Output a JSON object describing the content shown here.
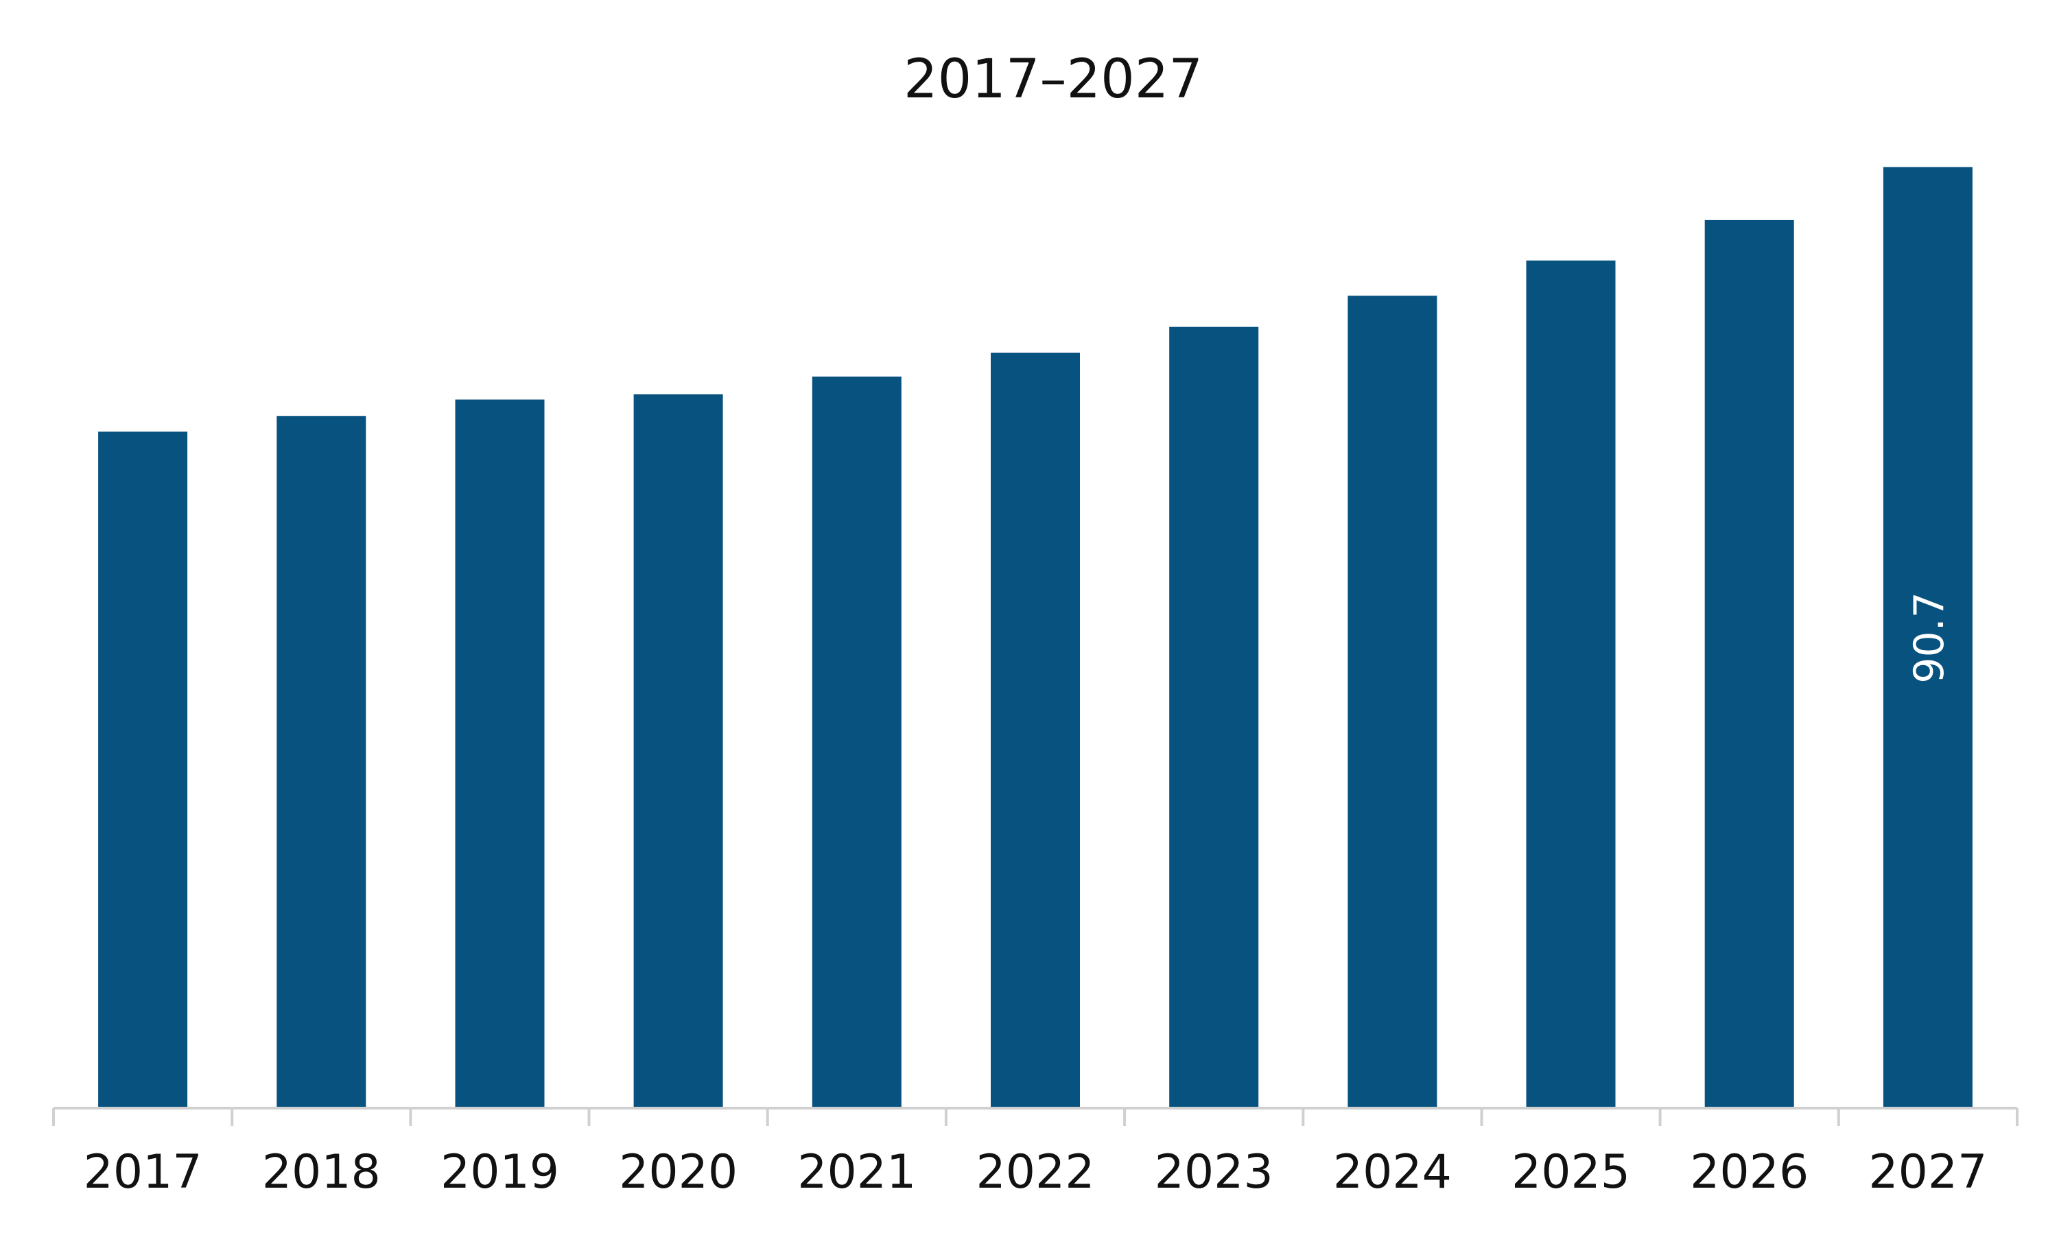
{
  "chart_data": {
    "type": "bar",
    "title": "2017–2027",
    "xlabel": "",
    "ylabel": "",
    "categories": [
      "2017",
      "2018",
      "2019",
      "2020",
      "2021",
      "2022",
      "2023",
      "2024",
      "2025",
      "2026",
      "2027"
    ],
    "series": [
      {
        "values": [
          65.2,
          66.7,
          68.3,
          68.8,
          70.5,
          72.8,
          75.3,
          78.3,
          81.7,
          85.6,
          90.7
        ]
      }
    ],
    "data_labels": [
      null,
      null,
      null,
      null,
      null,
      null,
      null,
      null,
      null,
      null,
      "90.7"
    ],
    "ylim": [
      0,
      100
    ],
    "grid": false,
    "legend": "none",
    "bar_color": "#08527F",
    "axis_color": "#d0d0d0"
  }
}
